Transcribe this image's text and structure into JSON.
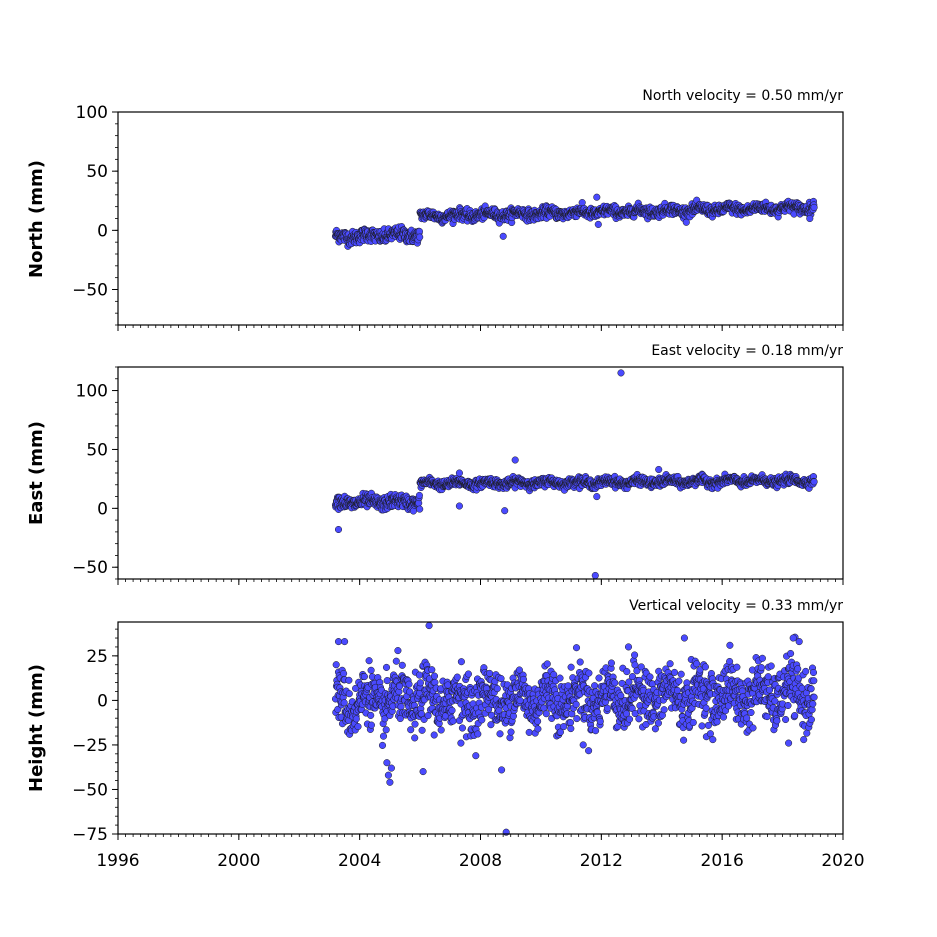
{
  "chart_data": {
    "type": "scatter",
    "x_axis": {
      "min": 1996,
      "max": 2020,
      "ticks": [
        1996,
        2000,
        2004,
        2008,
        2012,
        2016,
        2020
      ],
      "tick_labels": [
        "1996",
        "2000",
        "2004",
        "2008",
        "2012",
        "2016",
        "2020"
      ],
      "minor_tick_step_years": 0.25
    },
    "marker_fill": "#4a4aff",
    "marker_edge": "#1a1a1a",
    "panels": [
      {
        "ylabel": "North (mm)",
        "velocity_label": "North velocity = 0.50 mm/yr",
        "ylim": [
          -80,
          100
        ],
        "yticks": [
          100,
          50,
          0,
          -50
        ],
        "ytick_labels": [
          "100",
          "50",
          "0",
          "−50"
        ],
        "minor_ystep": 10,
        "segments": [
          {
            "x_start": 2003.2,
            "x_end": 2006.0,
            "y_start": -5.5,
            "y_end": -3.5,
            "scatter": 2.8
          },
          {
            "x_start": 2006.0,
            "x_end": 2019.05,
            "y_start": 12.0,
            "y_end": 19.5,
            "scatter": 2.2
          }
        ],
        "annual_amplitude": 1.5,
        "outliers": [
          {
            "x": 2008.75,
            "y": -5
          },
          {
            "x": 2011.85,
            "y": 28
          },
          {
            "x": 2011.9,
            "y": 5
          },
          {
            "x": 2018.9,
            "y": 10
          }
        ]
      },
      {
        "ylabel": "East (mm)",
        "velocity_label": "East velocity = 0.18 mm/yr",
        "ylim": [
          -60,
          120
        ],
        "yticks": [
          100,
          50,
          0,
          -50
        ],
        "ytick_labels": [
          "100",
          "50",
          "0",
          "−50"
        ],
        "minor_ystep": 10,
        "segments": [
          {
            "x_start": 2003.2,
            "x_end": 2006.0,
            "y_start": 5.0,
            "y_end": 5.5,
            "scatter": 2.8
          },
          {
            "x_start": 2006.0,
            "x_end": 2019.05,
            "y_start": 21.0,
            "y_end": 23.5,
            "scatter": 1.8
          }
        ],
        "annual_amplitude": 1.5,
        "outliers": [
          {
            "x": 2003.3,
            "y": -18
          },
          {
            "x": 2007.3,
            "y": 30
          },
          {
            "x": 2007.3,
            "y": 2
          },
          {
            "x": 2008.8,
            "y": -2
          },
          {
            "x": 2009.15,
            "y": 41
          },
          {
            "x": 2011.8,
            "y": -57
          },
          {
            "x": 2011.85,
            "y": 10
          },
          {
            "x": 2012.65,
            "y": 115
          },
          {
            "x": 2013.9,
            "y": 33
          }
        ]
      },
      {
        "ylabel": "Height (mm)",
        "velocity_label": "Vertical velocity = 0.33 mm/yr",
        "ylim": [
          -75,
          44
        ],
        "yticks": [
          25,
          0,
          -25,
          -50,
          -75
        ],
        "ytick_labels": [
          "25",
          "0",
          "−25",
          "−50",
          "−75"
        ],
        "minor_ystep": 5,
        "segments": [
          {
            "x_start": 2003.2,
            "x_end": 2019.05,
            "y_start": -1.0,
            "y_end": 4.0,
            "scatter": 8.0
          }
        ],
        "annual_amplitude": 6,
        "outliers": [
          {
            "x": 2005.0,
            "y": -46
          },
          {
            "x": 2004.95,
            "y": -42
          },
          {
            "x": 2005.05,
            "y": -38
          },
          {
            "x": 2004.9,
            "y": -35
          },
          {
            "x": 2006.1,
            "y": -40
          },
          {
            "x": 2006.3,
            "y": 42
          },
          {
            "x": 2008.7,
            "y": -39
          },
          {
            "x": 2008.85,
            "y": -74
          },
          {
            "x": 2003.3,
            "y": 33
          },
          {
            "x": 2003.5,
            "y": 33
          },
          {
            "x": 2012.9,
            "y": 30
          },
          {
            "x": 2014.75,
            "y": 35
          },
          {
            "x": 2018.35,
            "y": 35
          },
          {
            "x": 2018.55,
            "y": 33
          },
          {
            "x": 2018.2,
            "y": -24
          },
          {
            "x": 2011.4,
            "y": -25
          },
          {
            "x": 2007.35,
            "y": -24
          }
        ]
      }
    ]
  }
}
